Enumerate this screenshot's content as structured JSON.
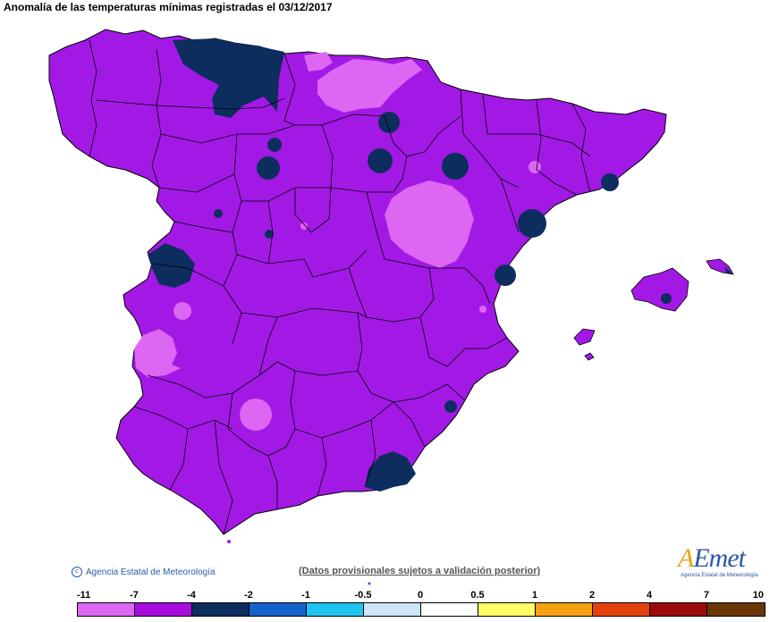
{
  "title": "Anomalía de las temperaturas mínimas registradas el 03/12/2017",
  "credit": "Agencia Estatal de Meteorología",
  "disclaimer": "(Datos provisionales sujetos a validación posterior)",
  "logo": {
    "brand": "AEmet",
    "subtitle": "Agencia Estatal de Meteorología"
  },
  "legend": {
    "ticks": [
      "-11",
      "-7",
      "-4",
      "-2",
      "-1",
      "-0.5",
      "0",
      "0.5",
      "1",
      "2",
      "4",
      "7",
      "10"
    ],
    "colors": [
      "#dd66f2",
      "#a70ddc",
      "#0d2d5e",
      "#1462cc",
      "#1ec4ef",
      "#cde6f6",
      "#ffffff",
      "#ffff66",
      "#f5a012",
      "#e5420e",
      "#9c0a0a",
      "#6b3606"
    ]
  },
  "colors": {
    "base_anomaly": "#a219e6",
    "warm_patch": "#dd66f2",
    "cold_patch": "#0d2d5e",
    "border": "#000000"
  }
}
